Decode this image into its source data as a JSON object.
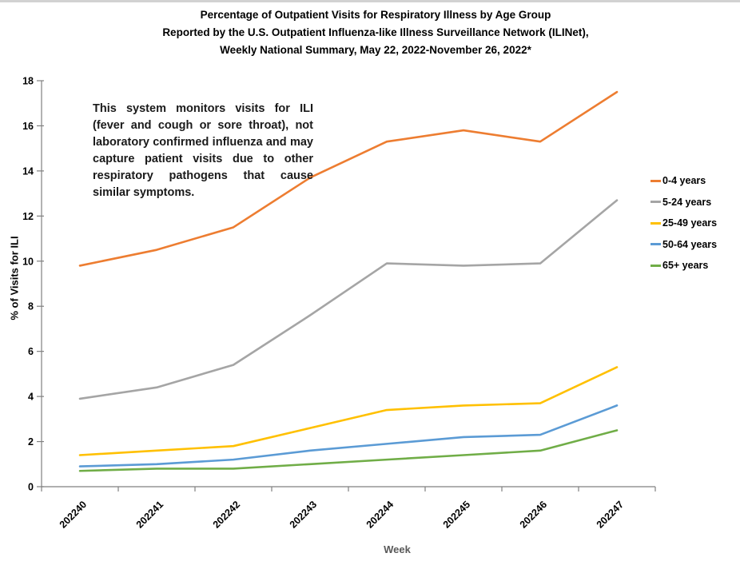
{
  "page": {
    "title_lines": [
      "Percentage of Outpatient Visits for Respiratory Illness by Age Group",
      "Reported by the U.S. Outpatient Influenza-like Illness Surveillance Network (ILINet),",
      "Weekly National Summary, May 22, 2022-November 26, 2022*"
    ]
  },
  "annotation": {
    "text": "This system monitors visits for ILI (fever and cough or sore throat), not laboratory confirmed influenza and may capture patient visits due to other respiratory pathogens that cause similar symptoms."
  },
  "chart_data": {
    "type": "line",
    "title": "Percentage of Outpatient Visits for Respiratory Illness by Age Group Reported by the U.S. Outpatient Influenza-like Illness Surveillance Network (ILINet), Weekly National Summary, May 22, 2022-November 26, 2022*",
    "categories": [
      "202240",
      "202241",
      "202242",
      "202243",
      "202244",
      "202245",
      "202246",
      "202247"
    ],
    "series": [
      {
        "name": "0-4 years",
        "color": "#ED7D31",
        "values": [
          9.8,
          10.5,
          11.5,
          13.7,
          15.3,
          15.8,
          15.3,
          17.5
        ]
      },
      {
        "name": "5-24 years",
        "color": "#A5A5A5",
        "values": [
          3.9,
          4.4,
          5.4,
          7.6,
          9.9,
          9.8,
          9.9,
          12.7
        ]
      },
      {
        "name": "25-49 years",
        "color": "#FFC000",
        "values": [
          1.4,
          1.6,
          1.8,
          2.6,
          3.4,
          3.6,
          3.7,
          5.3
        ]
      },
      {
        "name": "50-64 years",
        "color": "#5B9BD5",
        "values": [
          0.9,
          1.0,
          1.2,
          1.6,
          1.9,
          2.2,
          2.3,
          3.6
        ]
      },
      {
        "name": "65+ years",
        "color": "#70AD47",
        "values": [
          0.7,
          0.8,
          0.8,
          1.0,
          1.2,
          1.4,
          1.6,
          2.5
        ]
      }
    ],
    "xlabel": "Week",
    "ylabel": "% of Visits for ILI",
    "ylim": [
      0,
      18
    ],
    "ytick_step": 2,
    "yticks": [
      0,
      2,
      4,
      6,
      8,
      10,
      12,
      14,
      16,
      18
    ],
    "legend_position": "right",
    "grid": false,
    "axis_color": "#808080"
  }
}
